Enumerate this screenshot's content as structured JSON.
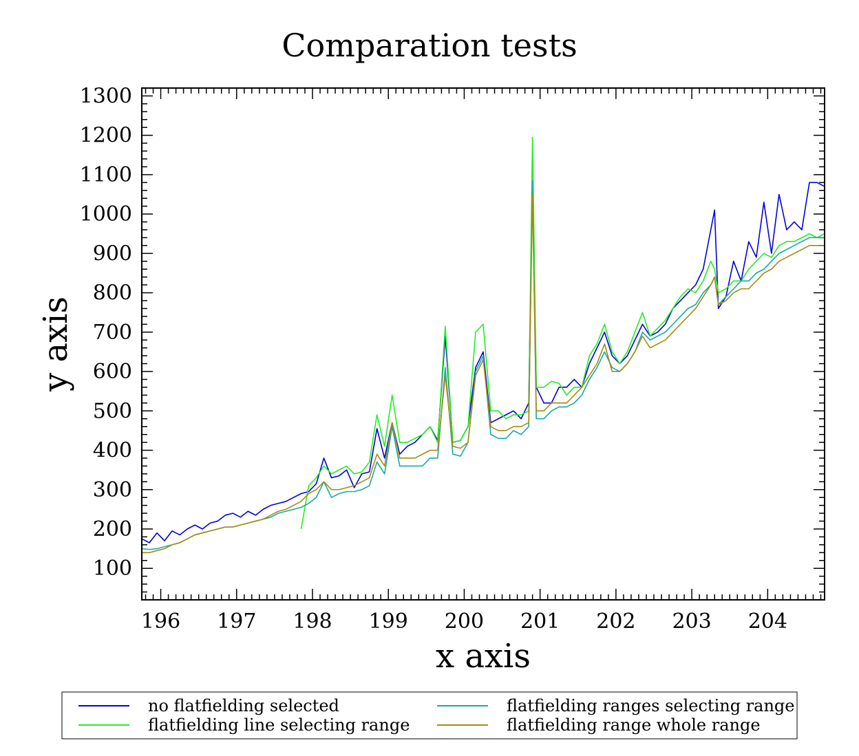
{
  "chart_data": {
    "type": "line",
    "title": "Comparation tests",
    "xlabel": "x axis",
    "ylabel": "y axis",
    "xlim": [
      195.75,
      204.75
    ],
    "ylim": [
      20,
      1320
    ],
    "x_ticks": [
      "196",
      "197",
      "198",
      "199",
      "200",
      "201",
      "202",
      "203",
      "204"
    ],
    "y_ticks": [
      "100",
      "200",
      "300",
      "400",
      "500",
      "600",
      "700",
      "800",
      "900",
      "1000",
      "1100",
      "1200",
      "1300"
    ],
    "grid": false,
    "legend_position": "bottom",
    "x": [
      195.75,
      195.85,
      195.95,
      196.05,
      196.15,
      196.25,
      196.35,
      196.45,
      196.55,
      196.65,
      196.75,
      196.85,
      196.95,
      197.05,
      197.15,
      197.25,
      197.35,
      197.45,
      197.55,
      197.65,
      197.75,
      197.85,
      197.95,
      198.05,
      198.15,
      198.25,
      198.35,
      198.45,
      198.55,
      198.65,
      198.75,
      198.85,
      198.95,
      199.05,
      199.15,
      199.25,
      199.35,
      199.45,
      199.55,
      199.65,
      199.75,
      199.85,
      199.95,
      200.05,
      200.15,
      200.25,
      200.35,
      200.45,
      200.55,
      200.65,
      200.75,
      200.85,
      200.9,
      200.95,
      201.05,
      201.15,
      201.25,
      201.35,
      201.45,
      201.55,
      201.65,
      201.75,
      201.85,
      201.95,
      202.05,
      202.15,
      202.25,
      202.35,
      202.45,
      202.55,
      202.65,
      202.75,
      202.85,
      202.95,
      203.05,
      203.15,
      203.25,
      203.3,
      203.35,
      203.45,
      203.55,
      203.65,
      203.75,
      203.85,
      203.95,
      204.05,
      204.15,
      204.25,
      204.35,
      204.45,
      204.55,
      204.65,
      204.75
    ],
    "series": [
      {
        "name": "no flatfielding selected",
        "color": "#0000dd",
        "values": [
          175,
          165,
          190,
          170,
          195,
          185,
          200,
          210,
          200,
          215,
          220,
          235,
          240,
          230,
          245,
          235,
          250,
          260,
          265,
          270,
          280,
          290,
          295,
          315,
          380,
          330,
          335,
          350,
          305,
          340,
          345,
          455,
          380,
          470,
          390,
          410,
          420,
          440,
          460,
          425,
          690,
          420,
          425,
          460,
          610,
          650,
          470,
          480,
          490,
          500,
          480,
          520,
          1085,
          560,
          520,
          520,
          560,
          560,
          580,
          560,
          620,
          660,
          700,
          640,
          620,
          640,
          680,
          720,
          690,
          700,
          720,
          760,
          780,
          800,
          820,
          860,
          960,
          1010,
          760,
          790,
          880,
          830,
          930,
          890,
          1030,
          900,
          1050,
          960,
          980,
          960,
          1080,
          1080,
          1070
        ]
      },
      {
        "name": "flatfielding line selecting range",
        "color": "#22ee22",
        "values": [
          null,
          null,
          null,
          null,
          null,
          null,
          null,
          null,
          null,
          null,
          null,
          null,
          null,
          null,
          null,
          null,
          null,
          null,
          null,
          null,
          null,
          200,
          310,
          330,
          360,
          340,
          350,
          360,
          340,
          345,
          370,
          490,
          410,
          540,
          420,
          420,
          430,
          440,
          460,
          420,
          715,
          420,
          425,
          460,
          700,
          720,
          500,
          500,
          480,
          490,
          490,
          500,
          1195,
          560,
          560,
          575,
          570,
          540,
          560,
          560,
          640,
          670,
          720,
          650,
          620,
          650,
          700,
          750,
          690,
          710,
          730,
          760,
          790,
          810,
          800,
          830,
          880,
          860,
          800,
          810,
          830,
          830,
          860,
          880,
          900,
          890,
          920,
          930,
          930,
          940,
          950,
          940,
          950
        ]
      },
      {
        "name": "flatfielding ranges selecting range",
        "color": "#11aaaa",
        "values": [
          150,
          148,
          150,
          155,
          160,
          165,
          175,
          185,
          190,
          195,
          200,
          205,
          205,
          210,
          215,
          220,
          225,
          230,
          240,
          245,
          250,
          255,
          265,
          280,
          320,
          280,
          290,
          295,
          295,
          300,
          310,
          370,
          340,
          460,
          360,
          360,
          360,
          360,
          380,
          380,
          610,
          390,
          385,
          420,
          600,
          640,
          440,
          430,
          430,
          450,
          440,
          460,
          1085,
          480,
          480,
          500,
          510,
          510,
          520,
          540,
          580,
          610,
          650,
          610,
          600,
          620,
          650,
          700,
          680,
          690,
          700,
          720,
          740,
          760,
          770,
          800,
          820,
          840,
          770,
          790,
          810,
          830,
          830,
          850,
          860,
          880,
          900,
          910,
          920,
          930,
          940,
          940,
          940
        ]
      },
      {
        "name": "flatfielding range whole range",
        "color": "#aa8811",
        "values": [
          140,
          140,
          145,
          150,
          160,
          165,
          175,
          185,
          190,
          195,
          200,
          205,
          205,
          210,
          215,
          220,
          225,
          235,
          245,
          250,
          260,
          270,
          290,
          300,
          320,
          300,
          300,
          305,
          310,
          320,
          330,
          390,
          360,
          470,
          380,
          380,
          380,
          390,
          400,
          400,
          590,
          410,
          405,
          420,
          590,
          630,
          460,
          450,
          450,
          460,
          460,
          470,
          1050,
          500,
          500,
          520,
          520,
          520,
          540,
          560,
          590,
          620,
          670,
          600,
          600,
          620,
          650,
          690,
          660,
          670,
          680,
          700,
          720,
          740,
          760,
          790,
          820,
          840,
          770,
          780,
          800,
          810,
          810,
          830,
          850,
          860,
          880,
          890,
          900,
          910,
          920,
          920,
          920
        ]
      }
    ]
  },
  "legend": {
    "entries": [
      {
        "label": "no flatfielding selected",
        "color": "#0000dd"
      },
      {
        "label": "flatfielding ranges selecting range",
        "color": "#11aaaa"
      },
      {
        "label": "flatfielding line selecting range",
        "color": "#22ee22"
      },
      {
        "label": "flatfielding range whole range",
        "color": "#aa8811"
      }
    ]
  }
}
